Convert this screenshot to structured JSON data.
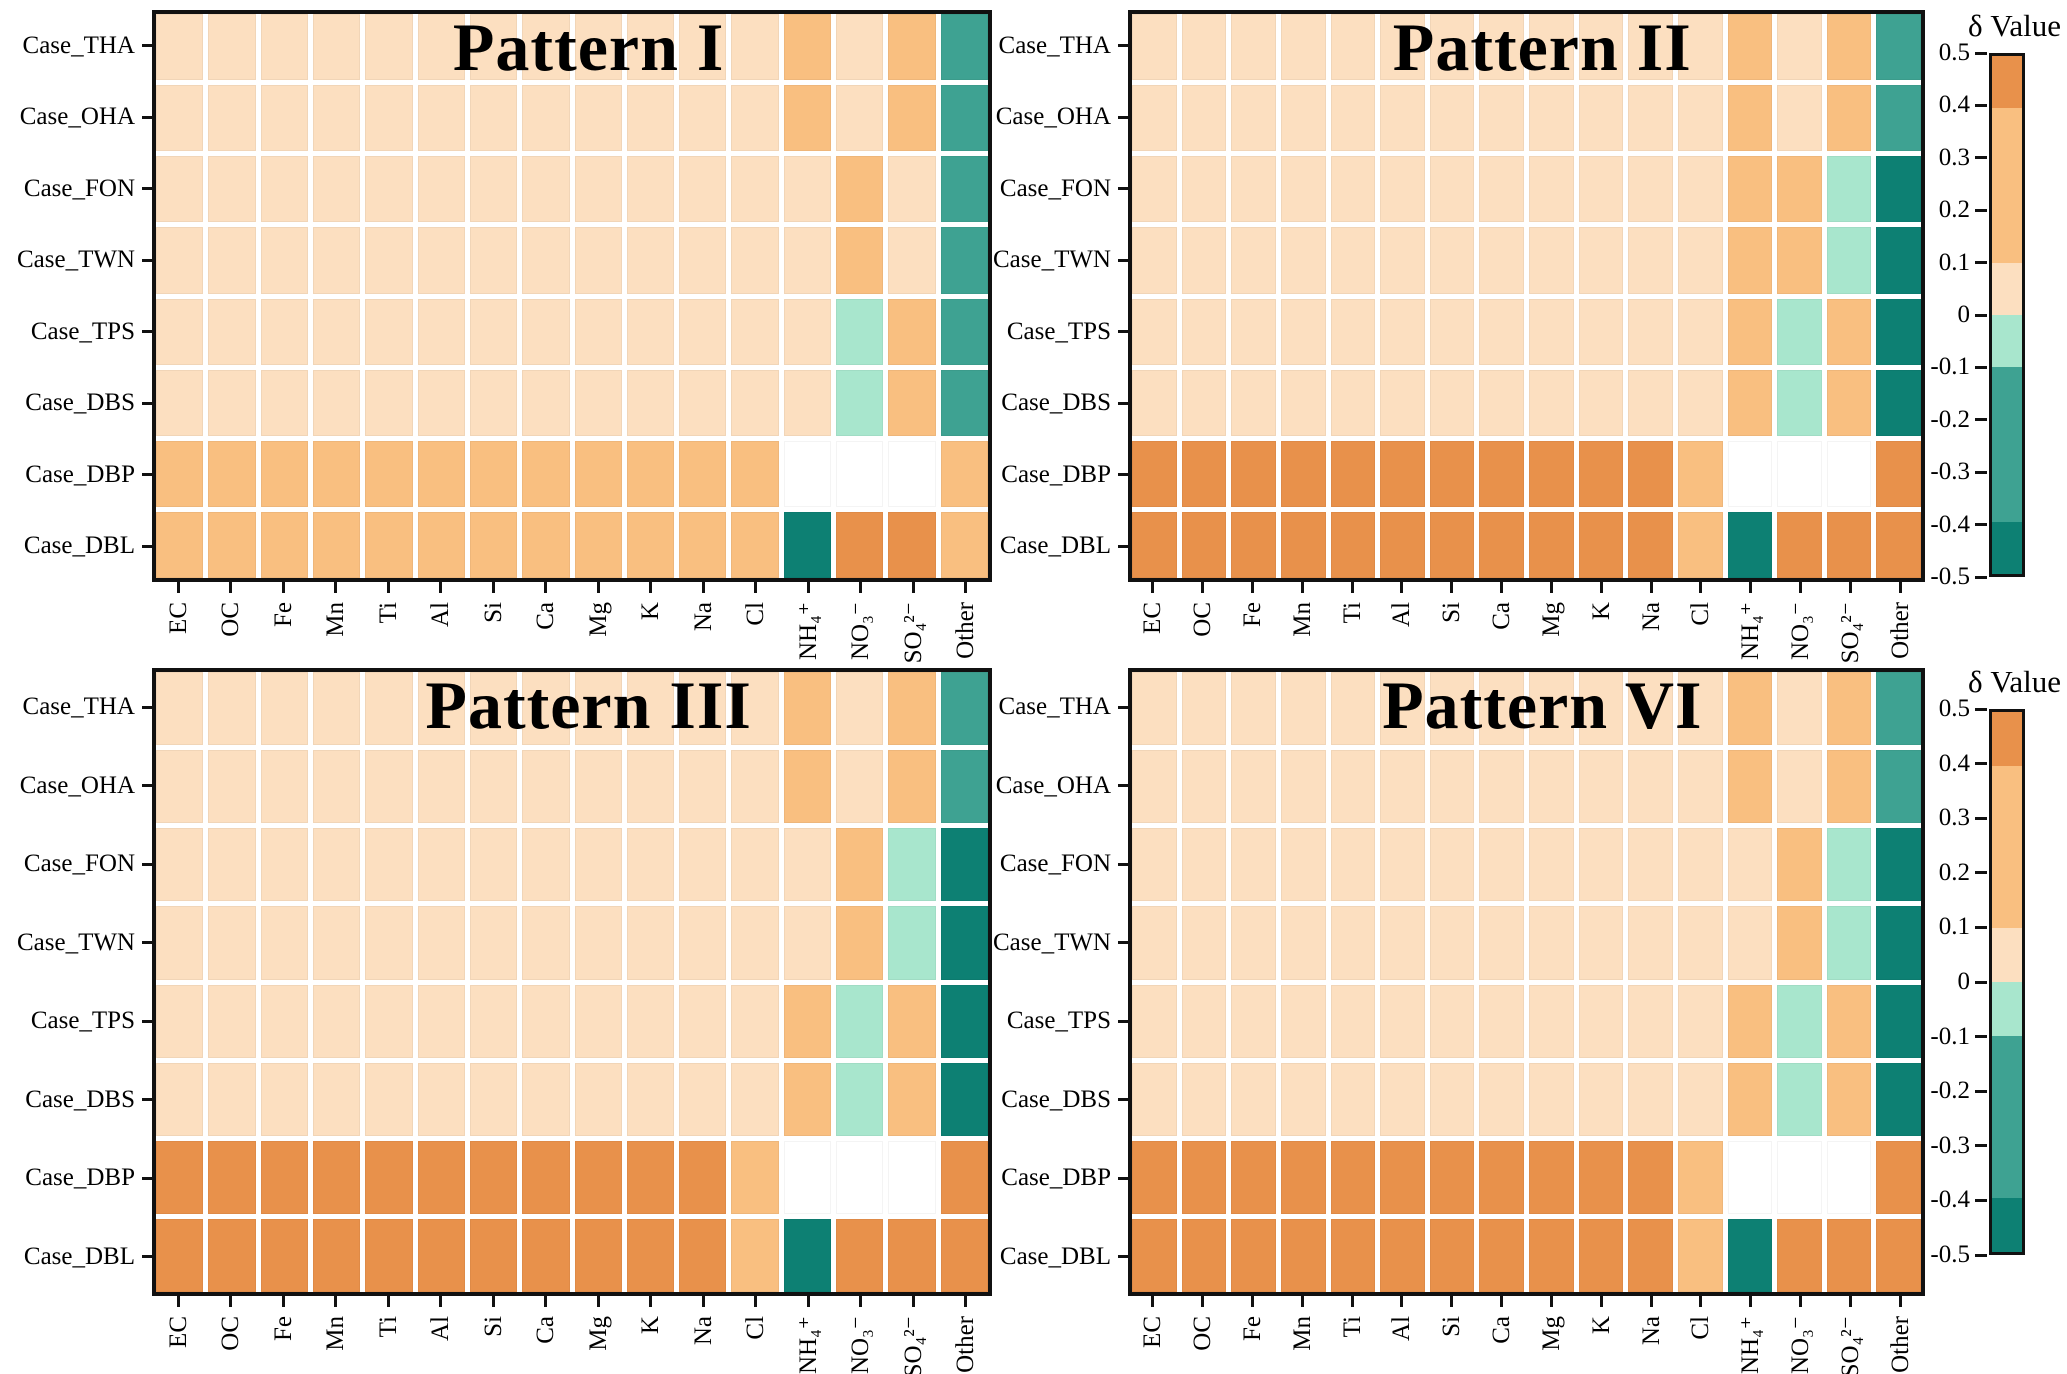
{
  "figure": {
    "description": "Four-panel binned heatmap figure of delta values by case and chemical species",
    "panel_count": 4
  },
  "colors": {
    "dark_orange": "#e8914b",
    "orange": "#f9bf80",
    "pale": "#fcdfc0",
    "mint": "#a8e6cd",
    "teal": "#3ea292",
    "dark_teal": "#0d8073",
    "missing": "#ffffff",
    "axis": "#111111"
  },
  "chart_data": {
    "type": "heatmap",
    "value_label": "δ Value",
    "vmin": -0.5,
    "vmax": 0.5,
    "x_categories": [
      "EC",
      "OC",
      "Fe",
      "Mn",
      "Ti",
      "Al",
      "Si",
      "Ca",
      "Mg",
      "K",
      "Na",
      "Cl",
      "NH₄⁺",
      "NO₃⁻",
      "SO₄²⁻",
      "Other"
    ],
    "y_categories": [
      "Case_THA",
      "Case_OHA",
      "Case_FON",
      "Case_TWN",
      "Case_TPS",
      "Case_DBS",
      "Case_DBP",
      "Case_DBL"
    ],
    "bin_edges": [
      -0.5,
      -0.4,
      -0.1,
      0,
      0.1,
      0.4,
      0.5
    ],
    "bin_colors": [
      "dark_teal",
      "teal",
      "mint",
      "pale",
      "orange",
      "dark_orange"
    ],
    "missing_value": null,
    "legend_position": "right",
    "colorbar": {
      "ticks": [
        "0.5",
        "0.4",
        "0.3",
        "0.2",
        "0.1",
        "0",
        "-0.1",
        "-0.2",
        "-0.3",
        "-0.4",
        "-0.5"
      ],
      "segments": [
        {
          "range": "0.4 to 0.5",
          "color": "dark_orange",
          "height_pct": 10,
          "dots": false
        },
        {
          "range": "0.1 to 0.4",
          "color": "orange",
          "height_pct": 30,
          "dots": false
        },
        {
          "range": "0 to 0.1",
          "color": "pale",
          "height_pct": 10,
          "dots": false
        },
        {
          "range": "-0.1 to 0",
          "color": "mint",
          "height_pct": 10,
          "dots": true
        },
        {
          "range": "-0.4 to -0.1",
          "color": "teal",
          "height_pct": 30,
          "dots": true
        },
        {
          "range": "-0.5 to -0.4",
          "color": "dark_teal",
          "height_pct": 10,
          "dots": true
        }
      ]
    },
    "panels": [
      {
        "title": "Pattern I",
        "values": [
          [
            0.05,
            0.05,
            0.05,
            0.05,
            0.05,
            0.05,
            0.05,
            0.05,
            0.05,
            0.05,
            0.05,
            0.05,
            0.25,
            0.05,
            0.25,
            -0.25
          ],
          [
            0.05,
            0.05,
            0.05,
            0.05,
            0.05,
            0.05,
            0.05,
            0.05,
            0.05,
            0.05,
            0.05,
            0.05,
            0.25,
            0.05,
            0.25,
            -0.25
          ],
          [
            0.05,
            0.05,
            0.05,
            0.05,
            0.05,
            0.05,
            0.05,
            0.05,
            0.05,
            0.05,
            0.05,
            0.05,
            0.05,
            0.25,
            0.05,
            -0.25
          ],
          [
            0.05,
            0.05,
            0.05,
            0.05,
            0.05,
            0.05,
            0.05,
            0.05,
            0.05,
            0.05,
            0.05,
            0.05,
            0.05,
            0.25,
            0.05,
            -0.25
          ],
          [
            0.05,
            0.05,
            0.05,
            0.05,
            0.05,
            0.05,
            0.05,
            0.05,
            0.05,
            0.05,
            0.05,
            0.05,
            0.05,
            -0.05,
            0.25,
            -0.25
          ],
          [
            0.05,
            0.05,
            0.05,
            0.05,
            0.05,
            0.05,
            0.05,
            0.05,
            0.05,
            0.05,
            0.05,
            0.05,
            0.05,
            -0.05,
            0.25,
            -0.25
          ],
          [
            0.25,
            0.25,
            0.25,
            0.25,
            0.25,
            0.25,
            0.25,
            0.25,
            0.25,
            0.25,
            0.25,
            0.25,
            null,
            null,
            null,
            0.25
          ],
          [
            0.25,
            0.25,
            0.25,
            0.25,
            0.25,
            0.25,
            0.25,
            0.25,
            0.25,
            0.25,
            0.25,
            0.25,
            -0.45,
            0.45,
            0.45,
            0.25
          ]
        ]
      },
      {
        "title": "Pattern II",
        "values": [
          [
            0.05,
            0.05,
            0.05,
            0.05,
            0.05,
            0.05,
            0.05,
            0.05,
            0.05,
            0.05,
            0.05,
            0.05,
            0.25,
            0.05,
            0.25,
            -0.25
          ],
          [
            0.05,
            0.05,
            0.05,
            0.05,
            0.05,
            0.05,
            0.05,
            0.05,
            0.05,
            0.05,
            0.05,
            0.05,
            0.25,
            0.05,
            0.25,
            -0.25
          ],
          [
            0.05,
            0.05,
            0.05,
            0.05,
            0.05,
            0.05,
            0.05,
            0.05,
            0.05,
            0.05,
            0.05,
            0.05,
            0.25,
            0.25,
            -0.05,
            -0.45
          ],
          [
            0.05,
            0.05,
            0.05,
            0.05,
            0.05,
            0.05,
            0.05,
            0.05,
            0.05,
            0.05,
            0.05,
            0.05,
            0.25,
            0.25,
            -0.05,
            -0.45
          ],
          [
            0.05,
            0.05,
            0.05,
            0.05,
            0.05,
            0.05,
            0.05,
            0.05,
            0.05,
            0.05,
            0.05,
            0.05,
            0.25,
            -0.05,
            0.25,
            -0.45
          ],
          [
            0.05,
            0.05,
            0.05,
            0.05,
            0.05,
            0.05,
            0.05,
            0.05,
            0.05,
            0.05,
            0.05,
            0.05,
            0.25,
            -0.05,
            0.25,
            -0.45
          ],
          [
            0.45,
            0.45,
            0.45,
            0.45,
            0.45,
            0.45,
            0.45,
            0.45,
            0.45,
            0.45,
            0.45,
            0.25,
            null,
            null,
            null,
            0.45
          ],
          [
            0.45,
            0.45,
            0.45,
            0.45,
            0.45,
            0.45,
            0.45,
            0.45,
            0.45,
            0.45,
            0.45,
            0.25,
            -0.45,
            0.45,
            0.45,
            0.45
          ]
        ]
      },
      {
        "title": "Pattern III",
        "values": [
          [
            0.05,
            0.05,
            0.05,
            0.05,
            0.05,
            0.05,
            0.05,
            0.05,
            0.05,
            0.05,
            0.05,
            0.05,
            0.25,
            0.05,
            0.25,
            -0.25
          ],
          [
            0.05,
            0.05,
            0.05,
            0.05,
            0.05,
            0.05,
            0.05,
            0.05,
            0.05,
            0.05,
            0.05,
            0.05,
            0.25,
            0.05,
            0.25,
            -0.25
          ],
          [
            0.05,
            0.05,
            0.05,
            0.05,
            0.05,
            0.05,
            0.05,
            0.05,
            0.05,
            0.05,
            0.05,
            0.05,
            0.05,
            0.25,
            -0.05,
            -0.45
          ],
          [
            0.05,
            0.05,
            0.05,
            0.05,
            0.05,
            0.05,
            0.05,
            0.05,
            0.05,
            0.05,
            0.05,
            0.05,
            0.05,
            0.25,
            -0.05,
            -0.45
          ],
          [
            0.05,
            0.05,
            0.05,
            0.05,
            0.05,
            0.05,
            0.05,
            0.05,
            0.05,
            0.05,
            0.05,
            0.05,
            0.25,
            -0.05,
            0.25,
            -0.45
          ],
          [
            0.05,
            0.05,
            0.05,
            0.05,
            0.05,
            0.05,
            0.05,
            0.05,
            0.05,
            0.05,
            0.05,
            0.05,
            0.25,
            -0.05,
            0.25,
            -0.45
          ],
          [
            0.45,
            0.45,
            0.45,
            0.45,
            0.45,
            0.45,
            0.45,
            0.45,
            0.45,
            0.45,
            0.45,
            0.25,
            null,
            null,
            null,
            0.45
          ],
          [
            0.45,
            0.45,
            0.45,
            0.45,
            0.45,
            0.45,
            0.45,
            0.45,
            0.45,
            0.45,
            0.45,
            0.25,
            -0.45,
            0.45,
            0.45,
            0.45
          ]
        ]
      },
      {
        "title": "Pattern VI",
        "values": [
          [
            0.05,
            0.05,
            0.05,
            0.05,
            0.05,
            0.05,
            0.05,
            0.05,
            0.05,
            0.05,
            0.05,
            0.05,
            0.25,
            0.05,
            0.25,
            -0.25
          ],
          [
            0.05,
            0.05,
            0.05,
            0.05,
            0.05,
            0.05,
            0.05,
            0.05,
            0.05,
            0.05,
            0.05,
            0.05,
            0.25,
            0.05,
            0.25,
            -0.25
          ],
          [
            0.05,
            0.05,
            0.05,
            0.05,
            0.05,
            0.05,
            0.05,
            0.05,
            0.05,
            0.05,
            0.05,
            0.05,
            0.05,
            0.25,
            -0.05,
            -0.45
          ],
          [
            0.05,
            0.05,
            0.05,
            0.05,
            0.05,
            0.05,
            0.05,
            0.05,
            0.05,
            0.05,
            0.05,
            0.05,
            0.05,
            0.25,
            -0.05,
            -0.45
          ],
          [
            0.05,
            0.05,
            0.05,
            0.05,
            0.05,
            0.05,
            0.05,
            0.05,
            0.05,
            0.05,
            0.05,
            0.05,
            0.25,
            -0.05,
            0.25,
            -0.45
          ],
          [
            0.05,
            0.05,
            0.05,
            0.05,
            0.05,
            0.05,
            0.05,
            0.05,
            0.05,
            0.05,
            0.05,
            0.05,
            0.25,
            -0.05,
            0.25,
            -0.45
          ],
          [
            0.45,
            0.45,
            0.45,
            0.45,
            0.45,
            0.45,
            0.45,
            0.45,
            0.45,
            0.45,
            0.45,
            0.25,
            null,
            null,
            null,
            0.45
          ],
          [
            0.45,
            0.45,
            0.45,
            0.45,
            0.45,
            0.45,
            0.45,
            0.45,
            0.45,
            0.45,
            0.45,
            0.25,
            -0.45,
            0.45,
            0.45,
            0.45
          ]
        ]
      }
    ]
  }
}
